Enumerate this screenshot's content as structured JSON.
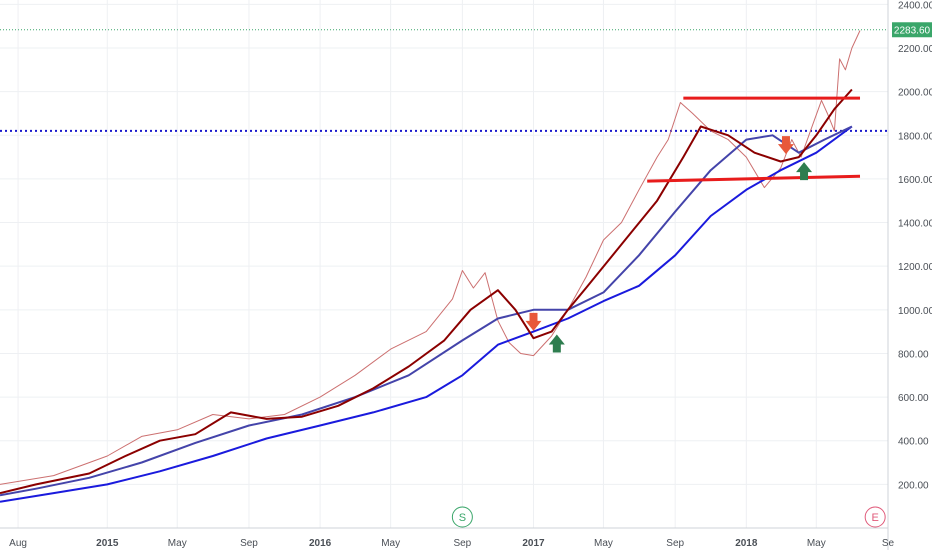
{
  "chart_data": {
    "type": "line",
    "price_label": "2283.60",
    "y_ticks": [
      "2400.00",
      "2200.00",
      "2000.00",
      "1800.00",
      "1600.00",
      "1400.00",
      "1200.00",
      "1000.00",
      "800.00",
      "600.00",
      "400.00",
      "200.00"
    ],
    "y_tick_values": [
      2400,
      2200,
      2000,
      1800,
      1600,
      1400,
      1200,
      1000,
      800,
      600,
      400,
      200
    ],
    "x_ticks": [
      "Aug",
      "2015",
      "May",
      "Sep",
      "2016",
      "May",
      "Sep",
      "2017",
      "May",
      "Sep",
      "2018",
      "May",
      "Se"
    ],
    "x_tick_dates": [
      "2014-08-01",
      "2015-01-01",
      "2015-05-01",
      "2015-09-01",
      "2016-01-01",
      "2016-05-01",
      "2016-09-01",
      "2017-01-01",
      "2017-05-01",
      "2017-09-01",
      "2018-01-01",
      "2018-05-01",
      "2018-09-01"
    ],
    "ylim": [
      0,
      2420
    ],
    "xlim": [
      "2014-07-01",
      "2018-09-01"
    ],
    "grid": true,
    "event_markers": [
      {
        "label": "S",
        "date": "2016-09-01"
      },
      {
        "label": "E",
        "date": "2018-08-10"
      }
    ],
    "horizontal_lines": [
      {
        "value": 1820,
        "color": "#1a1acc",
        "style": "dotted"
      },
      {
        "value": 2283.6,
        "color": "#3aa66a",
        "style": "dotted"
      }
    ],
    "trend_lines": [
      {
        "from": {
          "date": "2017-09-15",
          "value": 1970
        },
        "to": {
          "date": "2018-07-15",
          "value": 1970
        },
        "color": "#e81c1c"
      },
      {
        "from": {
          "date": "2017-07-15",
          "value": 1590
        },
        "to": {
          "date": "2018-07-15",
          "value": 1612
        },
        "color": "#e81c1c"
      }
    ],
    "arrows": [
      {
        "date": "2017-01-01",
        "value": 940,
        "direction": "down",
        "color": "#e8583a"
      },
      {
        "date": "2017-02-10",
        "value": 850,
        "direction": "up",
        "color": "#2e7d4f"
      },
      {
        "date": "2018-03-10",
        "value": 1750,
        "direction": "down",
        "color": "#e8583a"
      },
      {
        "date": "2018-04-10",
        "value": 1640,
        "direction": "up",
        "color": "#2e7d4f"
      }
    ],
    "series": [
      {
        "color": "#8b0000",
        "x": [
          "2014-07-01",
          "2014-09-01",
          "2014-12-01",
          "2015-02-01",
          "2015-04-01",
          "2015-06-01",
          "2015-08-01",
          "2015-10-01",
          "2015-12-01",
          "2016-02-01",
          "2016-04-01",
          "2016-06-01",
          "2016-08-01",
          "2016-09-15",
          "2016-11-01",
          "2016-12-01",
          "2017-01-01",
          "2017-02-01",
          "2017-03-01",
          "2017-04-01",
          "2017-06-01",
          "2017-08-01",
          "2017-09-15",
          "2017-10-15",
          "2017-12-01",
          "2018-01-15",
          "2018-03-01",
          "2018-04-01",
          "2018-05-01",
          "2018-06-01",
          "2018-07-01"
        ],
        "values": [
          160,
          200,
          250,
          330,
          400,
          430,
          530,
          500,
          510,
          560,
          640,
          740,
          860,
          1000,
          1090,
          1000,
          870,
          900,
          1000,
          1100,
          1300,
          1500,
          1700,
          1840,
          1800,
          1720,
          1680,
          1700,
          1800,
          1920,
          2010
        ]
      },
      {
        "color": "#4444aa",
        "x": [
          "2014-07-01",
          "2014-09-01",
          "2014-12-01",
          "2015-03-01",
          "2015-06-01",
          "2015-09-01",
          "2015-12-01",
          "2016-03-01",
          "2016-06-01",
          "2016-09-01",
          "2016-11-01",
          "2017-01-01",
          "2017-03-01",
          "2017-05-01",
          "2017-07-01",
          "2017-09-01",
          "2017-11-01",
          "2018-01-01",
          "2018-02-15",
          "2018-04-01",
          "2018-05-15",
          "2018-07-01"
        ],
        "values": [
          150,
          180,
          230,
          300,
          390,
          470,
          520,
          600,
          700,
          860,
          960,
          1000,
          1000,
          1080,
          1250,
          1450,
          1640,
          1780,
          1800,
          1720,
          1780,
          1840
        ]
      },
      {
        "color": "#1a1add",
        "x": [
          "2014-07-01",
          "2014-10-01",
          "2015-01-01",
          "2015-04-01",
          "2015-07-01",
          "2015-10-01",
          "2016-01-01",
          "2016-04-01",
          "2016-07-01",
          "2016-09-01",
          "2016-11-01",
          "2017-01-01",
          "2017-03-01",
          "2017-05-01",
          "2017-07-01",
          "2017-09-01",
          "2017-11-01",
          "2018-01-01",
          "2018-03-01",
          "2018-05-01",
          "2018-07-01"
        ],
        "values": [
          120,
          160,
          200,
          260,
          330,
          410,
          470,
          530,
          600,
          700,
          840,
          900,
          960,
          1040,
          1110,
          1250,
          1430,
          1550,
          1640,
          1720,
          1840
        ]
      },
      {
        "color": "#cc7070",
        "x": [
          "2014-07-01",
          "2014-10-01",
          "2015-01-01",
          "2015-03-01",
          "2015-05-01",
          "2015-07-01",
          "2015-09-01",
          "2015-11-01",
          "2016-01-01",
          "2016-03-01",
          "2016-05-01",
          "2016-07-01",
          "2016-08-15",
          "2016-09-01",
          "2016-09-20",
          "2016-10-10",
          "2016-11-01",
          "2016-11-20",
          "2016-12-10",
          "2017-01-01",
          "2017-02-01",
          "2017-03-01",
          "2017-04-01",
          "2017-05-01",
          "2017-06-01",
          "2017-07-01",
          "2017-08-01",
          "2017-08-20",
          "2017-09-10",
          "2017-10-01",
          "2017-11-01",
          "2017-12-01",
          "2018-01-01",
          "2018-02-01",
          "2018-03-01",
          "2018-03-20",
          "2018-04-05",
          "2018-04-25",
          "2018-05-10",
          "2018-05-20",
          "2018-06-01",
          "2018-06-10",
          "2018-06-20",
          "2018-07-01",
          "2018-07-15"
        ],
        "values": [
          200,
          240,
          330,
          420,
          450,
          520,
          500,
          520,
          600,
          700,
          820,
          900,
          1050,
          1180,
          1100,
          1170,
          950,
          850,
          800,
          790,
          880,
          1000,
          1150,
          1320,
          1400,
          1550,
          1700,
          1780,
          1950,
          1900,
          1820,
          1780,
          1700,
          1560,
          1650,
          1780,
          1700,
          1850,
          1960,
          1900,
          1820,
          2150,
          2100,
          2200,
          2280
        ]
      }
    ]
  }
}
